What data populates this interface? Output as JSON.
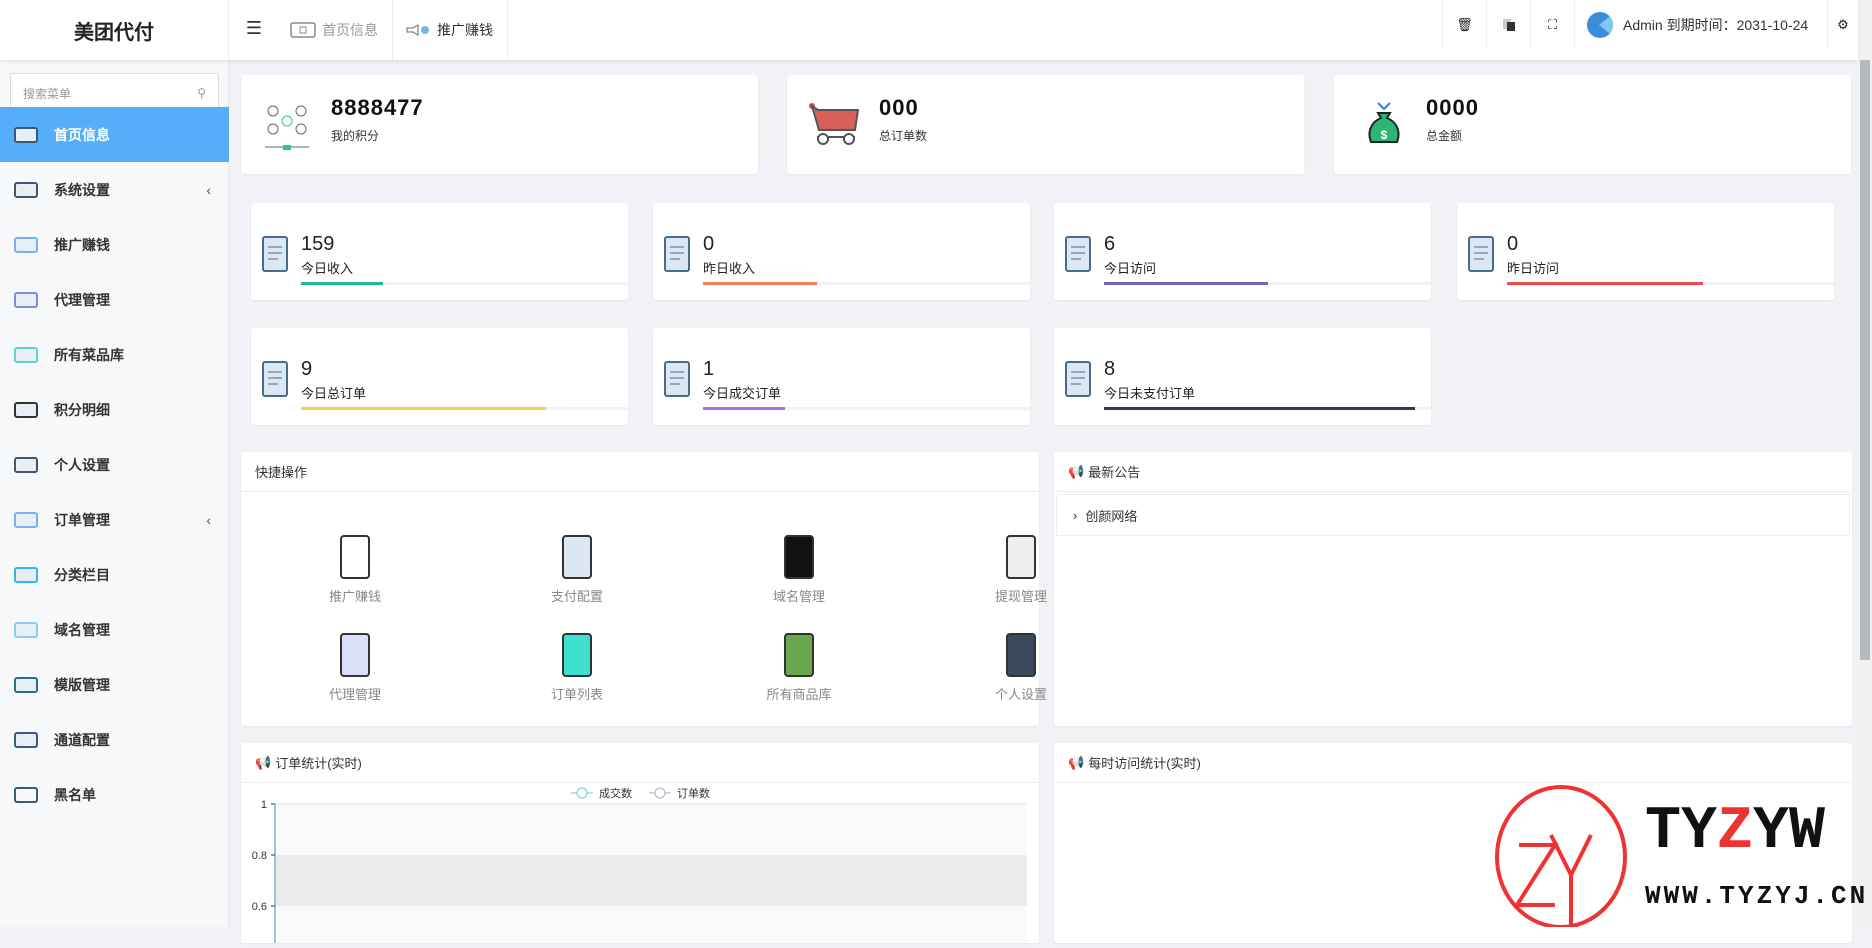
{
  "app": {
    "title": "美团代付"
  },
  "header": {
    "tabs": [
      {
        "label": "首页信息",
        "icon": "home-icon"
      },
      {
        "label": "推广赚钱",
        "icon": "promo-icon"
      }
    ],
    "icons": [
      "trash-icon",
      "translate-icon",
      "fullscreen-icon"
    ],
    "user": {
      "name": "Admin",
      "expiry_label": "到期时间：",
      "expiry": "2031-10-24"
    },
    "settings_icon": "gears-icon"
  },
  "sidebar": {
    "search_placeholder": "搜索菜单",
    "items": [
      {
        "label": "首页信息",
        "active": true
      },
      {
        "label": "系统设置",
        "expandable": true
      },
      {
        "label": "推广赚钱"
      },
      {
        "label": "代理管理"
      },
      {
        "label": "所有菜品库"
      },
      {
        "label": "积分明细"
      },
      {
        "label": "个人设置"
      },
      {
        "label": "订单管理",
        "expandable": true
      },
      {
        "label": "分类栏目"
      },
      {
        "label": "域名管理"
      },
      {
        "label": "模版管理"
      },
      {
        "label": "通道配置"
      },
      {
        "label": "黑名单"
      }
    ]
  },
  "summary": [
    {
      "value": "8888477",
      "label": "我的积分"
    },
    {
      "value": "000",
      "label": "总订单数"
    },
    {
      "value": "0000",
      "label": "总金额"
    }
  ],
  "stats": [
    {
      "value": "159",
      "label": "今日收入",
      "progress": 0.25,
      "color": "#1abc9c"
    },
    {
      "value": "0",
      "label": "昨日收入",
      "progress": 0.35,
      "color": "#f5805c"
    },
    {
      "value": "6",
      "label": "今日访问",
      "progress": 0.5,
      "color": "#7266ba"
    },
    {
      "value": "0",
      "label": "昨日访问",
      "progress": 0.6,
      "color": "#ef4d4d"
    },
    {
      "value": "9",
      "label": "今日总订单",
      "progress": 0.75,
      "color": "#fad048"
    },
    {
      "value": "1",
      "label": "今日成交订单",
      "progress": 0.25,
      "color": "#a66ff0"
    },
    {
      "value": "8",
      "label": "今日未支付订单",
      "progress": 0.95,
      "color": "#2c3e50"
    }
  ],
  "quick": {
    "title": "快捷操作",
    "items": [
      "推广赚钱",
      "支付配置",
      "域名管理",
      "提现管理",
      "代理管理",
      "订单列表",
      "所有商品库",
      "个人设置"
    ]
  },
  "notice": {
    "title": "最新公告",
    "items": [
      "创颜网络"
    ]
  },
  "order_chart": {
    "title": "订单统计(实时)"
  },
  "visit_chart": {
    "title": "每时访问统计(实时)"
  },
  "chart_data": {
    "type": "line",
    "series": [
      {
        "name": "成交数",
        "values": [],
        "color": "#5fd3d0"
      },
      {
        "name": "订单数",
        "values": [],
        "color": "#b6a2de"
      }
    ],
    "yticks": [
      "1",
      "0.8",
      "0.6"
    ],
    "legend": "top"
  },
  "watermark": {
    "text": "TYZYW",
    "url": "WWW.TYZYJ.CN"
  }
}
